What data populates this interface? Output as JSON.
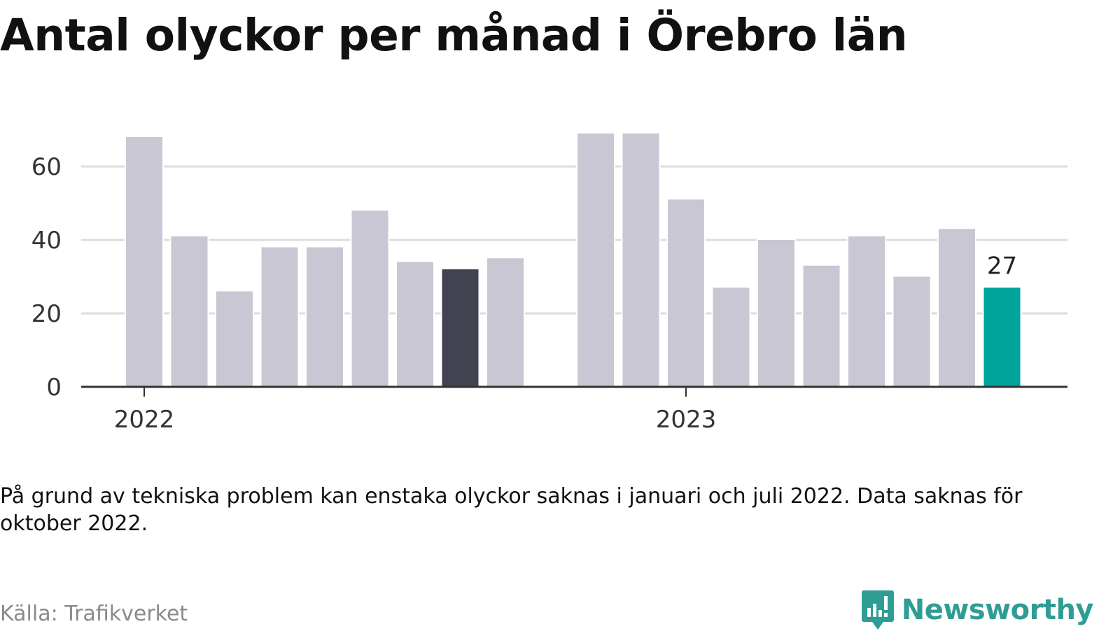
{
  "title": "Antal olyckor per månad i Örebro län",
  "note": "På grund av tekniska problem kan enstaka olyckor saknas i januari och juli 2022. Data saknas för oktober 2022.",
  "source": "Källa: Trafikverket",
  "brand": {
    "name": "Newsworthy",
    "icon": "newsworthy-chart-bubble-icon"
  },
  "chart_data": {
    "type": "bar",
    "title": "Antal olyckor per månad i Örebro län",
    "xlabel": "",
    "ylabel": "",
    "x_tick_labels": [
      "2022",
      "2023"
    ],
    "y_ticks": [
      0,
      20,
      40,
      60
    ],
    "ylim": [
      0,
      70
    ],
    "grid": true,
    "legend": "none",
    "colors": {
      "default": "#c8c7d3",
      "highlight_previous": "#424250",
      "highlight_latest": "#00a49a",
      "grid": "#dddddd",
      "axis": "#333333"
    },
    "series": [
      {
        "values": [
          {
            "year": 2022,
            "month": 1,
            "value": 68
          },
          {
            "year": 2022,
            "month": 2,
            "value": 41
          },
          {
            "year": 2022,
            "month": 3,
            "value": 26
          },
          {
            "year": 2022,
            "month": 4,
            "value": 38
          },
          {
            "year": 2022,
            "month": 5,
            "value": 38
          },
          {
            "year": 2022,
            "month": 6,
            "value": 48
          },
          {
            "year": 2022,
            "month": 7,
            "value": 34
          },
          {
            "year": 2022,
            "month": 8,
            "value": 32,
            "highlight": "previous"
          },
          {
            "year": 2022,
            "month": 9,
            "value": 35
          },
          {
            "year": 2022,
            "month": 10,
            "value": null
          },
          {
            "year": 2022,
            "month": 11,
            "value": 69
          },
          {
            "year": 2022,
            "month": 12,
            "value": 69
          },
          {
            "year": 2023,
            "month": 1,
            "value": 51
          },
          {
            "year": 2023,
            "month": 2,
            "value": 27
          },
          {
            "year": 2023,
            "month": 3,
            "value": 40
          },
          {
            "year": 2023,
            "month": 4,
            "value": 33
          },
          {
            "year": 2023,
            "month": 5,
            "value": 41
          },
          {
            "year": 2023,
            "month": 6,
            "value": 30
          },
          {
            "year": 2023,
            "month": 7,
            "value": 43
          },
          {
            "year": 2023,
            "month": 8,
            "value": 27,
            "highlight": "latest"
          }
        ]
      }
    ],
    "data_labels": [
      {
        "year": 2023,
        "month": 8,
        "text": "27"
      }
    ]
  }
}
